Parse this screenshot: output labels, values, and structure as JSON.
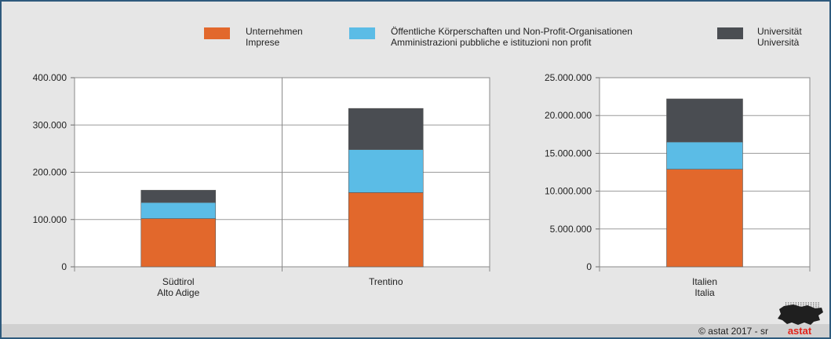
{
  "colors": {
    "unternehmen": "#e2682c",
    "oeffentlich": "#5bbce6",
    "universitaet": "#4a4d52",
    "background": "#e6e6e6",
    "plot_bg": "#ffffff",
    "frame": "#2e5a7d",
    "logo_red": "#e2231a"
  },
  "legend": [
    {
      "line1": "Unternehmen",
      "line2": "Imprese",
      "color_key": "unternehmen"
    },
    {
      "line1": "Öffentliche Körperschaften und Non-Profit-Organisationen",
      "line2": "Amministrazioni pubbliche e istituzioni non profit",
      "color_key": "oeffentlich"
    },
    {
      "line1": "Universität",
      "line2": "Università",
      "color_key": "universitaet"
    }
  ],
  "chart_data": [
    {
      "type": "bar",
      "stacked": true,
      "categories": [
        [
          "Südtirol",
          "Alto Adige"
        ],
        [
          "Trentino"
        ]
      ],
      "ylim": [
        0,
        400000
      ],
      "yticks": [
        0,
        100000,
        200000,
        300000,
        400000
      ],
      "ytick_labels": [
        "0",
        "100.000",
        "200.000",
        "300.000",
        "400.000"
      ],
      "series": [
        {
          "name": "Unternehmen / Imprese",
          "color_key": "unternehmen",
          "values": [
            102000,
            157000
          ]
        },
        {
          "name": "Öffentliche Körperschaften und Non-Profit-Organisationen / Amministrazioni pubbliche e istituzioni non profit",
          "color_key": "oeffentlich",
          "values": [
            34000,
            91000
          ]
        },
        {
          "name": "Universität / Università",
          "color_key": "universitaet",
          "values": [
            26000,
            87000
          ]
        }
      ],
      "grid": true
    },
    {
      "type": "bar",
      "stacked": true,
      "categories": [
        [
          "Italien",
          "Italia"
        ]
      ],
      "ylim": [
        0,
        25000000
      ],
      "yticks": [
        0,
        5000000,
        10000000,
        15000000,
        20000000,
        25000000
      ],
      "ytick_labels": [
        "0",
        "5.000.000",
        "10.000.000",
        "15.000.000",
        "20.000.000",
        "25.000.000"
      ],
      "series": [
        {
          "name": "Unternehmen / Imprese",
          "color_key": "unternehmen",
          "values": [
            12900000
          ]
        },
        {
          "name": "Öffentliche Körperschaften und Non-Profit-Organisationen / Amministrazioni pubbliche e istituzioni non profit",
          "color_key": "oeffentlich",
          "values": [
            3600000
          ]
        },
        {
          "name": "Universität / Università",
          "color_key": "universitaet",
          "values": [
            5700000
          ]
        }
      ],
      "grid": true
    }
  ],
  "footer": {
    "copyright": "© astat 2017 - sr",
    "logo_text": "astat"
  }
}
